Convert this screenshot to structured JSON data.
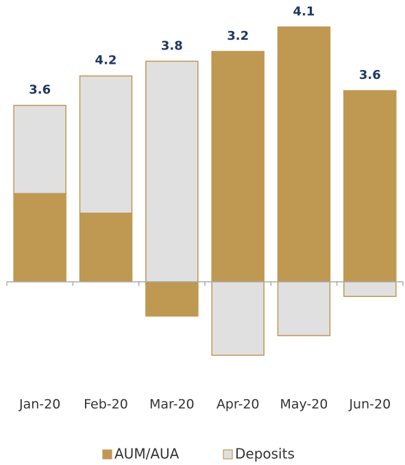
{
  "chart_data": {
    "type": "stacked-bar",
    "categories": [
      "Jan-20",
      "Feb-20",
      "Mar-20",
      "Apr-20",
      "May-20",
      "Jun-20"
    ],
    "series": [
      {
        "name": "AUM/AUA",
        "color": "#bf9852",
        "values": [
          1.8,
          1.4,
          -0.7,
          4.7,
          5.2,
          3.9
        ]
      },
      {
        "name": "Deposits",
        "color": "#e0e0e0",
        "values": [
          1.8,
          2.8,
          4.5,
          -1.5,
          -1.1,
          -0.3
        ]
      }
    ],
    "totals": [
      3.6,
      4.2,
      3.8,
      3.2,
      4.1,
      3.6
    ],
    "ylim": [
      -2.2,
      5.75
    ],
    "legend": "bottom"
  }
}
